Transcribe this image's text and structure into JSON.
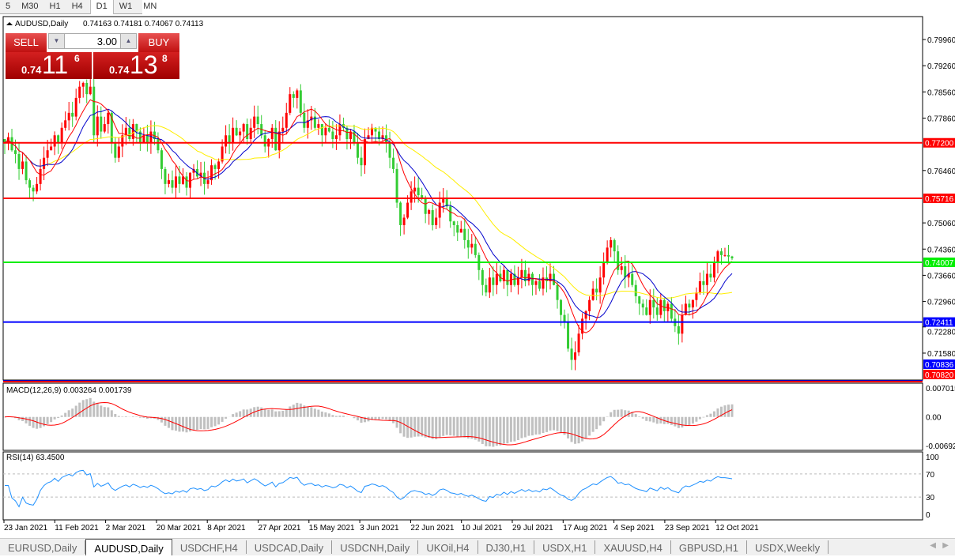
{
  "timeframes": [
    {
      "label": "5"
    },
    {
      "label": "M30"
    },
    {
      "label": "H1"
    },
    {
      "label": "H4"
    },
    {
      "label": "D1",
      "selected": true
    },
    {
      "label": "W1"
    },
    {
      "label": "MN"
    }
  ],
  "header": {
    "symbol": "AUDUSD,Daily",
    "ohlc": "0.74163 0.74181 0.74067 0.74113"
  },
  "trade_panel": {
    "sell_label": "SELL",
    "buy_label": "BUY",
    "lot": "3.00",
    "sell_price": {
      "prefix": "0.74",
      "big": "11",
      "pip": "6"
    },
    "buy_price": {
      "prefix": "0.74",
      "big": "13",
      "pip": "8"
    }
  },
  "colors": {
    "bull": "#ff0000",
    "bear": "#33cc33",
    "ma_fast": "#ff0000",
    "ma_mid": "#0000cc",
    "ma_slow": "#ffee00",
    "macd_hist": "#c0c0c0",
    "macd_signal": "#ff0000",
    "rsi": "#1e90ff"
  },
  "chart_data": {
    "type": "candlestick",
    "symbol": "AUDUSD",
    "timeframe": "Daily",
    "ylim": [
      0.7082,
      0.8031
    ],
    "y_ticks": [
      "0.79960",
      "0.79260",
      "0.78560",
      "0.77860",
      "0.76460",
      "0.75060",
      "0.74360",
      "0.73660",
      "0.72960",
      "0.72280",
      "0.71580"
    ],
    "x_labels": [
      "23 Jan 2021",
      "11 Feb 2021",
      "2 Mar 2021",
      "20 Mar 2021",
      "8 Apr 2021",
      "27 Apr 2021",
      "15 May 2021",
      "3 Jun 2021",
      "22 Jun 2021",
      "10 Jul 2021",
      "29 Jul 2021",
      "17 Aug 2021",
      "4 Sep 2021",
      "23 Sep 2021",
      "12 Oct 2021"
    ],
    "closes": [
      0.772,
      0.7735,
      0.77,
      0.769,
      0.765,
      0.767,
      0.762,
      0.76,
      0.759,
      0.761,
      0.765,
      0.768,
      0.77,
      0.771,
      0.774,
      0.772,
      0.776,
      0.778,
      0.78,
      0.779,
      0.784,
      0.787,
      0.788,
      0.785,
      0.787,
      0.774,
      0.779,
      0.775,
      0.777,
      0.78,
      0.772,
      0.768,
      0.771,
      0.774,
      0.776,
      0.773,
      0.777,
      0.775,
      0.772,
      0.774,
      0.772,
      0.775,
      0.773,
      0.77,
      0.765,
      0.761,
      0.762,
      0.76,
      0.763,
      0.761,
      0.763,
      0.76,
      0.764,
      0.765,
      0.763,
      0.764,
      0.761,
      0.762,
      0.766,
      0.765,
      0.767,
      0.771,
      0.774,
      0.772,
      0.776,
      0.774,
      0.775,
      0.777,
      0.773,
      0.776,
      0.779,
      0.777,
      0.774,
      0.771,
      0.773,
      0.776,
      0.77,
      0.775,
      0.776,
      0.78,
      0.785,
      0.784,
      0.786,
      0.78,
      0.776,
      0.778,
      0.779,
      0.776,
      0.777,
      0.774,
      0.776,
      0.775,
      0.773,
      0.774,
      0.777,
      0.776,
      0.773,
      0.775,
      0.772,
      0.768,
      0.766,
      0.773,
      0.774,
      0.776,
      0.775,
      0.773,
      0.774,
      0.772,
      0.768,
      0.765,
      0.756,
      0.75,
      0.752,
      0.756,
      0.759,
      0.76,
      0.758,
      0.757,
      0.753,
      0.754,
      0.75,
      0.752,
      0.756,
      0.757,
      0.755,
      0.751,
      0.75,
      0.748,
      0.749,
      0.746,
      0.744,
      0.745,
      0.742,
      0.738,
      0.734,
      0.732,
      0.736,
      0.734,
      0.737,
      0.735,
      0.738,
      0.734,
      0.737,
      0.734,
      0.736,
      0.738,
      0.735,
      0.737,
      0.734,
      0.735,
      0.733,
      0.736,
      0.735,
      0.737,
      0.734,
      0.73,
      0.726,
      0.724,
      0.717,
      0.714,
      0.716,
      0.721,
      0.725,
      0.727,
      0.73,
      0.733,
      0.732,
      0.736,
      0.74,
      0.744,
      0.746,
      0.743,
      0.738,
      0.739,
      0.736,
      0.737,
      0.734,
      0.731,
      0.729,
      0.728,
      0.726,
      0.73,
      0.728,
      0.726,
      0.73,
      0.727,
      0.729,
      0.725,
      0.723,
      0.721,
      0.726,
      0.729,
      0.728,
      0.73,
      0.732,
      0.735,
      0.734,
      0.737,
      0.736,
      0.74,
      0.743,
      0.742,
      0.742,
      0.7416,
      0.74113
    ],
    "last_candle": {
      "open": 0.74163,
      "high": 0.74181,
      "low": 0.74067,
      "close": 0.74113
    },
    "current_price": "0.74113",
    "horizontal_lines": [
      {
        "price": 0.772,
        "label": "0.77200",
        "color": "#ff0000"
      },
      {
        "price": 0.75716,
        "label": "0.75716",
        "color": "#ff0000"
      },
      {
        "price": 0.74007,
        "label": "0.74007",
        "color": "#00ee00"
      },
      {
        "price": 0.72411,
        "label": "0.72411",
        "color": "#0000ff"
      },
      {
        "price": 0.70836,
        "label": "0.70836",
        "color": "#0000ff"
      },
      {
        "price": 0.7082,
        "label": "0.70820",
        "color": "#ff0000"
      }
    ],
    "macd": {
      "label": "MACD(12,26,9) 0.003264 0.001739",
      "ylim": [
        -0.006923,
        0.007015
      ],
      "ticks": [
        "0.007015",
        "0.00",
        "-0.006923"
      ]
    },
    "rsi": {
      "label": "RSI(14) 63.4500",
      "ylim": [
        0,
        100
      ],
      "levels": [
        30,
        70
      ],
      "ticks": [
        "100",
        "70",
        "30",
        "0"
      ]
    }
  },
  "tabs": [
    {
      "label": "EURUSD,Daily"
    },
    {
      "label": "AUDUSD,Daily",
      "selected": true
    },
    {
      "label": "USDCHF,H4"
    },
    {
      "label": "USDCAD,Daily"
    },
    {
      "label": "USDCNH,Daily"
    },
    {
      "label": "UKOil,H4"
    },
    {
      "label": "DJ30,H1"
    },
    {
      "label": "USDX,H1"
    },
    {
      "label": "XAUUSD,H4"
    },
    {
      "label": "GBPUSD,H1"
    },
    {
      "label": "USDX,Weekly"
    }
  ]
}
